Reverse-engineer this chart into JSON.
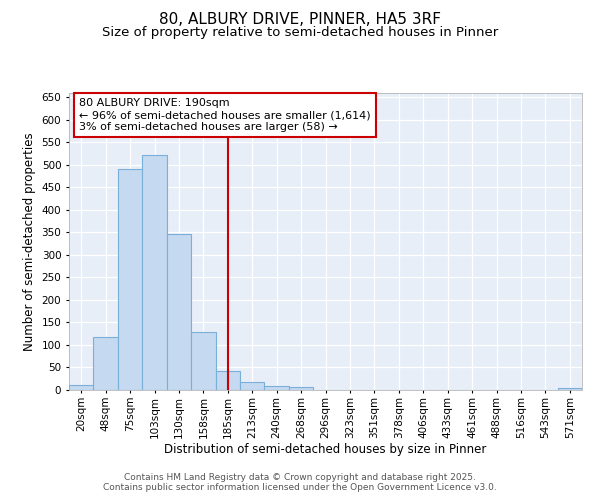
{
  "title_line1": "80, ALBURY DRIVE, PINNER, HA5 3RF",
  "title_line2": "Size of property relative to semi-detached houses in Pinner",
  "xlabel": "Distribution of semi-detached houses by size in Pinner",
  "ylabel": "Number of semi-detached properties",
  "categories": [
    "20sqm",
    "48sqm",
    "75sqm",
    "103sqm",
    "130sqm",
    "158sqm",
    "185sqm",
    "213sqm",
    "240sqm",
    "268sqm",
    "296sqm",
    "323sqm",
    "351sqm",
    "378sqm",
    "406sqm",
    "433sqm",
    "461sqm",
    "488sqm",
    "516sqm",
    "543sqm",
    "571sqm"
  ],
  "values": [
    10,
    118,
    490,
    522,
    345,
    128,
    42,
    18,
    8,
    6,
    0,
    0,
    0,
    0,
    0,
    0,
    0,
    0,
    0,
    0,
    5
  ],
  "bar_color": "#c5d9f0",
  "bar_edge_color": "#7ab0d8",
  "vline_x_index": 6,
  "vline_color": "#cc0000",
  "annotation_title": "80 ALBURY DRIVE: 190sqm",
  "annotation_line1": "← 96% of semi-detached houses are smaller (1,614)",
  "annotation_line2": "3% of semi-detached houses are larger (58) →",
  "annotation_box_color": "#cc0000",
  "ylim": [
    0,
    660
  ],
  "yticks": [
    0,
    50,
    100,
    150,
    200,
    250,
    300,
    350,
    400,
    450,
    500,
    550,
    600,
    650
  ],
  "footer_line1": "Contains HM Land Registry data © Crown copyright and database right 2025.",
  "footer_line2": "Contains public sector information licensed under the Open Government Licence v3.0.",
  "bg_color": "#e8eef8",
  "grid_color": "#ffffff",
  "title_fontsize": 11,
  "subtitle_fontsize": 9.5,
  "axis_label_fontsize": 8.5,
  "tick_fontsize": 7.5,
  "annotation_fontsize": 8,
  "footer_fontsize": 6.5
}
